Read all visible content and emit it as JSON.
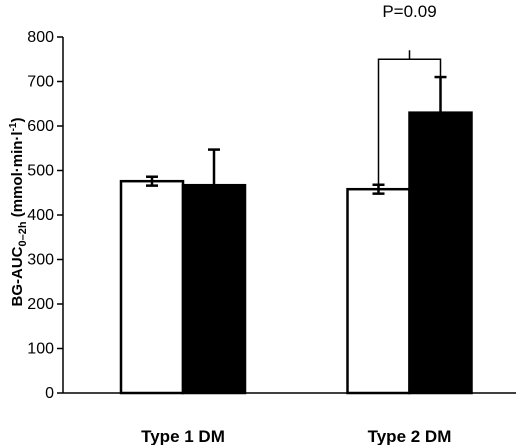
{
  "chart_data": {
    "type": "bar",
    "title": "",
    "xlabel": "",
    "ylabel": {
      "main": "BG-AUC",
      "subscript": "0–2h",
      "unit_open": " (mmol·min·l",
      "unit_sup": "-1",
      "unit_close": ")"
    },
    "ylim": [
      0,
      800
    ],
    "yticks": [
      0,
      100,
      200,
      300,
      400,
      500,
      600,
      700,
      800
    ],
    "yticklabels": [
      "0",
      "100",
      "200",
      "300",
      "400",
      "500",
      "600",
      "700",
      "800"
    ],
    "categories": [
      "Type 1 DM",
      "Type 2 DM"
    ],
    "series": [
      {
        "fill": "#ffffff",
        "values": [
          476,
          458
        ],
        "errors": [
          10,
          10
        ]
      },
      {
        "fill": "#000000",
        "values": [
          467,
          630
        ],
        "errors": [
          80,
          80
        ]
      }
    ],
    "grid": false,
    "legend": "none",
    "annotations": [
      {
        "text": "P=0.09",
        "category": 1,
        "bracket_left_y": 460,
        "bracket_right_y": 640,
        "bracket_top_y": 750
      }
    ]
  }
}
